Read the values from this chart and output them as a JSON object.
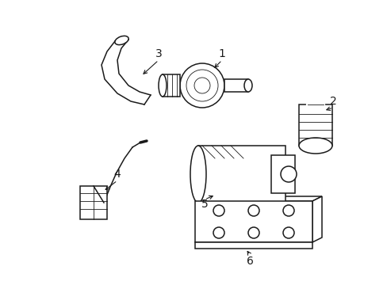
{
  "bg_color": "#ffffff",
  "line_color": "#1a1a1a",
  "line_width": 1.1,
  "thin_line": 0.6,
  "font_size": 10
}
